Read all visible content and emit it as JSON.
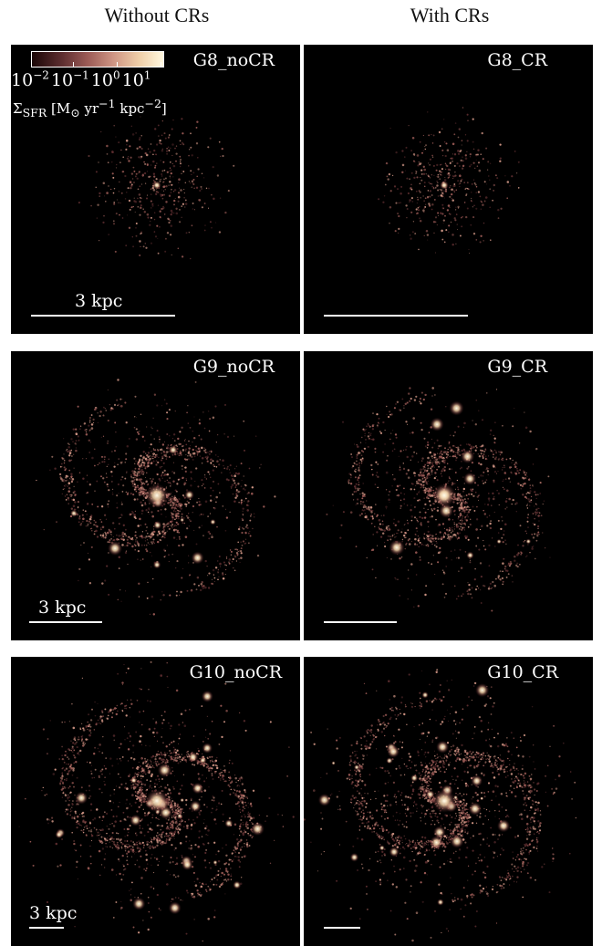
{
  "columns": {
    "left_title": "Without CRs",
    "right_title": "With CRs"
  },
  "colorbar": {
    "tick_labels": [
      {
        "base": "10",
        "exp": "−2"
      },
      {
        "base": "10",
        "exp": "−1"
      },
      {
        "base": "10",
        "exp": "0"
      },
      {
        "base": "10",
        "exp": "1"
      }
    ],
    "label_html": "Σ<sub>SFR</sub> [M<sub>⊙</sub> yr<sup>−1</sup> kpc<sup>−2</sup>]",
    "colors": [
      "#1a0606",
      "#5a2c2e",
      "#9a5a55",
      "#cf9584",
      "#efcfa9",
      "#fff8de"
    ]
  },
  "panels": [
    {
      "id": "G8_noCR",
      "label": "G8_noCR",
      "scale_label": "3 kpc",
      "seed": 11,
      "density": "sparse"
    },
    {
      "id": "G8_CR",
      "label": "G8_CR",
      "scale_label": "",
      "seed": 23,
      "density": "sparse"
    },
    {
      "id": "G9_noCR",
      "label": "G9_noCR",
      "scale_label": "3 kpc",
      "seed": 37,
      "density": "medium"
    },
    {
      "id": "G9_CR",
      "label": "G9_CR",
      "scale_label": "",
      "seed": 49,
      "density": "medium"
    },
    {
      "id": "G10_noCR",
      "label": "G10_noCR",
      "scale_label": "3 kpc",
      "seed": 61,
      "density": "dense"
    },
    {
      "id": "G10_CR",
      "label": "G10_CR",
      "scale_label": "",
      "seed": 73,
      "density": "dense"
    }
  ]
}
